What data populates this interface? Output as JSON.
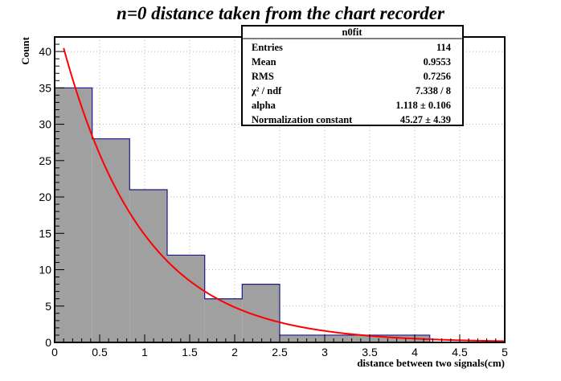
{
  "chart_data": {
    "type": "bar",
    "title": "n=0 distance taken from the chart recorder",
    "xlabel": "distance between two signals(cm)",
    "ylabel": "Count",
    "xlim": [
      0,
      5
    ],
    "ylim": [
      0,
      42
    ],
    "grid": true,
    "x_ticks": [
      "0",
      "0.5",
      "1",
      "1.5",
      "2",
      "2.5",
      "3",
      "3.5",
      "4",
      "4.5",
      "5"
    ],
    "y_ticks": [
      "0",
      "5",
      "10",
      "15",
      "20",
      "25",
      "30",
      "35",
      "40"
    ],
    "bins": [
      {
        "x0": 0.0,
        "x1": 0.417,
        "value": 35
      },
      {
        "x0": 0.417,
        "x1": 0.833,
        "value": 28
      },
      {
        "x0": 0.833,
        "x1": 1.25,
        "value": 21
      },
      {
        "x0": 1.25,
        "x1": 1.667,
        "value": 12
      },
      {
        "x0": 1.667,
        "x1": 2.083,
        "value": 6
      },
      {
        "x0": 2.083,
        "x1": 2.5,
        "value": 8
      },
      {
        "x0": 2.5,
        "x1": 2.917,
        "value": 1
      },
      {
        "x0": 2.917,
        "x1": 3.333,
        "value": 1
      },
      {
        "x0": 3.333,
        "x1": 3.75,
        "value": 1
      },
      {
        "x0": 3.75,
        "x1": 4.167,
        "value": 1
      },
      {
        "x0": 4.167,
        "x1": 4.583,
        "value": 0
      },
      {
        "x0": 4.583,
        "x1": 5.0,
        "value": 0
      }
    ],
    "fit": {
      "function": "exponential",
      "constant": 45.27,
      "alpha": 1.118,
      "x_range": [
        0.1,
        5.0
      ]
    },
    "colors": {
      "bar_fill": "#a0a0a0",
      "bar_edge": "#1a1a8c",
      "fit_line": "#ff0000",
      "grid": "#b0b0b0"
    },
    "stats_box": {
      "title": "n0fit",
      "rows": [
        {
          "label": "Entries",
          "value": "114"
        },
        {
          "label": "Mean",
          "value": "0.9553"
        },
        {
          "label": "RMS",
          "value": "0.7256"
        },
        {
          "label": "χ² / ndf",
          "value": "7.338 / 8"
        },
        {
          "label": "alpha",
          "value": "1.118  ± 0.106"
        },
        {
          "label": "Normalization constant",
          "value": "45.27  ± 4.39"
        }
      ]
    }
  }
}
